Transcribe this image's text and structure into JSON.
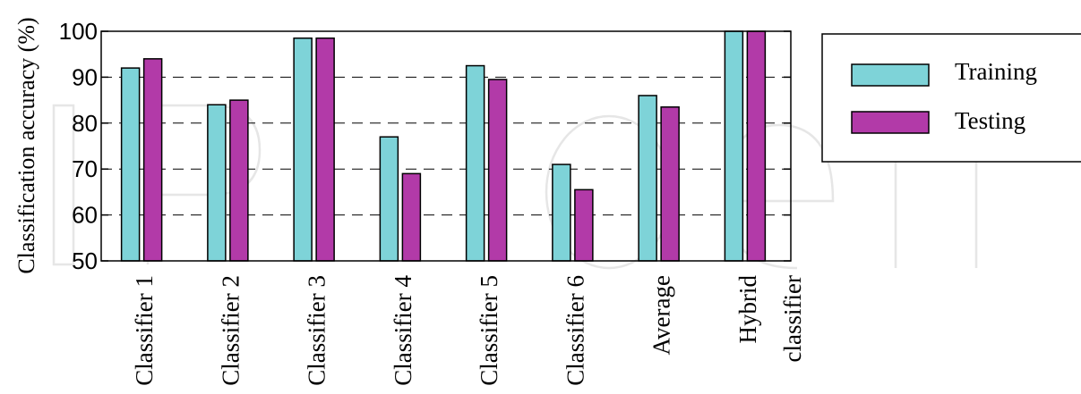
{
  "chart_data": {
    "type": "bar",
    "ylabel": "Classification accuracy (%)",
    "xlabel": "",
    "ylim": [
      50,
      100
    ],
    "yticks": [
      50,
      60,
      70,
      80,
      90,
      100
    ],
    "grid": "horizontal dashed",
    "legend_position": "right",
    "categories": [
      [
        "Classifier 1"
      ],
      [
        "Classifier 2"
      ],
      [
        "Classifier 3"
      ],
      [
        "Classifier 4"
      ],
      [
        "Classifier 5"
      ],
      [
        "Classifier 6"
      ],
      [
        "Average"
      ],
      [
        "Hybrid",
        "classifier"
      ]
    ],
    "series": [
      {
        "name": "Training",
        "color": "#7ed3d8",
        "values": [
          92,
          84,
          98.5,
          77,
          92.5,
          71,
          86,
          100
        ]
      },
      {
        "name": "Testing",
        "color": "#b23aa8",
        "values": [
          94,
          85,
          98.5,
          69,
          89.5,
          65.5,
          83.5,
          100
        ]
      }
    ]
  }
}
